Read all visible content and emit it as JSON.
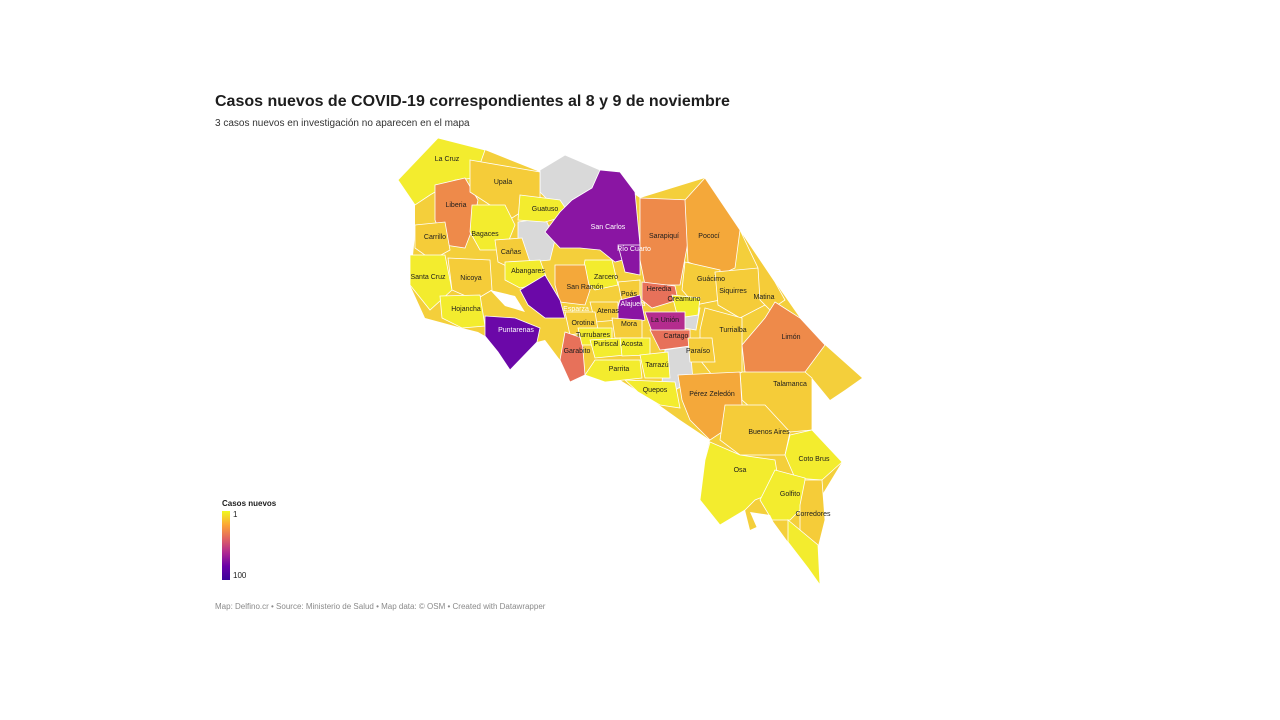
{
  "title": "Casos nuevos de COVID-19 correspondientes al 8 y 9 de noviembre",
  "subtitle": "3 casos nuevos en investigación no aparecen en el mapa",
  "legend": {
    "title": "Casos nuevos",
    "min": "1",
    "max": "100"
  },
  "footer": "Map: Delfino.cr • Source: Ministerio de Salud • Map data: © OSM • Created with Datawrapper",
  "colors": {
    "scale": [
      "#f0f921",
      "#fca636",
      "#e16462",
      "#b12a90",
      "#6a00a8",
      "#3a049a"
    ],
    "no_data": "#d9d9d9",
    "yellow": "#f3ec2e",
    "light_orange": "#f5cc39",
    "orange": "#f4a83a",
    "dark_orange": "#ee8a4a",
    "salmon": "#e7715a",
    "magenta": "#b42c8e",
    "purple": "#8a15a3",
    "dark_purple": "#6b08a8"
  },
  "cantons": [
    {
      "name": "La Cruz",
      "color_key": "yellow"
    },
    {
      "name": "Upala",
      "color_key": "light_orange"
    },
    {
      "name": "Liberia",
      "color_key": "dark_orange"
    },
    {
      "name": "Guatuso",
      "color_key": "yellow"
    },
    {
      "name": "Carrillo",
      "color_key": "light_orange"
    },
    {
      "name": "Bagaces",
      "color_key": "yellow"
    },
    {
      "name": "San Carlos",
      "color_key": "purple"
    },
    {
      "name": "Sarapiquí",
      "color_key": "dark_orange"
    },
    {
      "name": "Pococí",
      "color_key": "orange"
    },
    {
      "name": "Río Cuarto",
      "color_key": "purple"
    },
    {
      "name": "Cañas",
      "color_key": "light_orange"
    },
    {
      "name": "Abangares",
      "color_key": "yellow"
    },
    {
      "name": "Santa Cruz",
      "color_key": "yellow"
    },
    {
      "name": "Nicoya",
      "color_key": "light_orange"
    },
    {
      "name": "Zarcero",
      "color_key": "yellow"
    },
    {
      "name": "San Ramón",
      "color_key": "orange"
    },
    {
      "name": "Guácimo",
      "color_key": "light_orange"
    },
    {
      "name": "Heredia",
      "color_key": "salmon"
    },
    {
      "name": "Siquirres",
      "color_key": "light_orange"
    },
    {
      "name": "Poás",
      "color_key": "light_orange"
    },
    {
      "name": "Alajuela",
      "color_key": "purple"
    },
    {
      "name": "Matina",
      "color_key": "light_orange"
    },
    {
      "name": "Oreamuno",
      "color_key": "yellow"
    },
    {
      "name": "Hojancha",
      "color_key": "yellow"
    },
    {
      "name": "Esparza",
      "color_key": "dark_purple"
    },
    {
      "name": "Atenas",
      "color_key": "light_orange"
    },
    {
      "name": "Puntarenas",
      "color_key": "dark_purple"
    },
    {
      "name": "Orotina",
      "color_key": "light_orange"
    },
    {
      "name": "Mora",
      "color_key": "light_orange"
    },
    {
      "name": "La Unión",
      "color_key": "magenta"
    },
    {
      "name": "Turrialba",
      "color_key": "light_orange"
    },
    {
      "name": "Limón",
      "color_key": "dark_orange"
    },
    {
      "name": "Turrubares",
      "color_key": "yellow"
    },
    {
      "name": "Cartago",
      "color_key": "salmon"
    },
    {
      "name": "Puriscal",
      "color_key": "yellow"
    },
    {
      "name": "Acosta",
      "color_key": "yellow"
    },
    {
      "name": "Paraíso",
      "color_key": "light_orange"
    },
    {
      "name": "Garabito",
      "color_key": "salmon"
    },
    {
      "name": "Tarrazú",
      "color_key": "yellow"
    },
    {
      "name": "Parrita",
      "color_key": "yellow"
    },
    {
      "name": "Talamanca",
      "color_key": "light_orange"
    },
    {
      "name": "Quepos",
      "color_key": "yellow"
    },
    {
      "name": "Pérez Zeledón",
      "color_key": "orange"
    },
    {
      "name": "Buenos Aires",
      "color_key": "light_orange"
    },
    {
      "name": "Coto Brus",
      "color_key": "yellow"
    },
    {
      "name": "Osa",
      "color_key": "yellow"
    },
    {
      "name": "Golfito",
      "color_key": "yellow"
    },
    {
      "name": "Corredores",
      "color_key": "light_orange"
    }
  ]
}
